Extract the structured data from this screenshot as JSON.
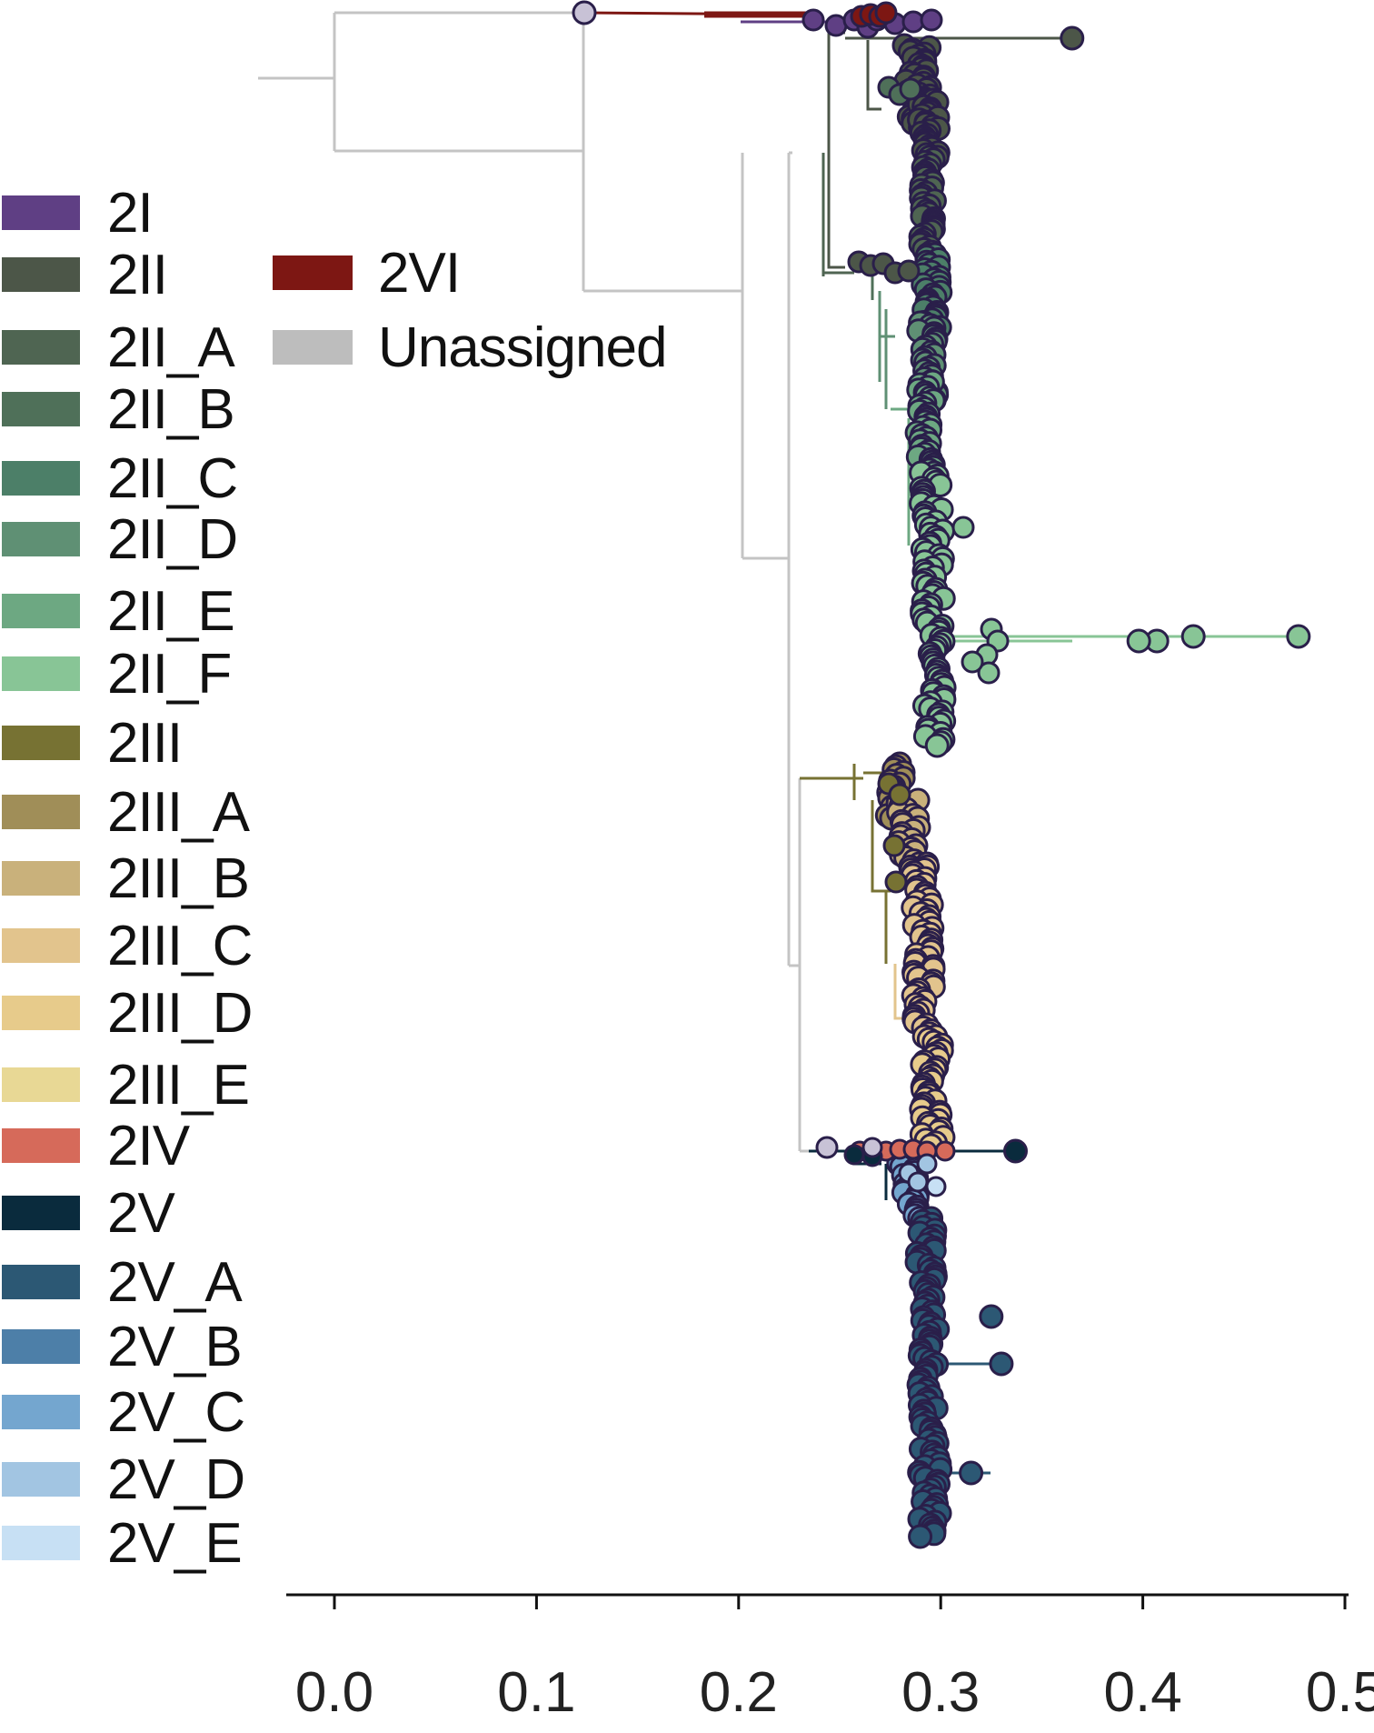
{
  "legend_left": [
    {
      "label": "2I",
      "color": "#5f3f84"
    },
    {
      "label": "2II",
      "color": "#4c5648"
    },
    {
      "label": "2II_A",
      "color": "#4f6552"
    },
    {
      "label": "2II_B",
      "color": "#4f7059"
    },
    {
      "label": "2II_C",
      "color": "#4c7f68"
    },
    {
      "label": "2II_D",
      "color": "#5f9074"
    },
    {
      "label": "2II_E",
      "color": "#6da882"
    },
    {
      "label": "2II_F",
      "color": "#88c596"
    },
    {
      "label": "2III",
      "color": "#777233"
    },
    {
      "label": "2III_A",
      "color": "#a08e58"
    },
    {
      "label": "2III_B",
      "color": "#c9b17b"
    },
    {
      "label": "2III_C",
      "color": "#e2c48d"
    },
    {
      "label": "2III_D",
      "color": "#e7cb8b"
    },
    {
      "label": "2III_E",
      "color": "#e8d895"
    },
    {
      "label": "2IV",
      "color": "#d66a5a"
    },
    {
      "label": "2V",
      "color": "#0a2b3d"
    },
    {
      "label": "2V_A",
      "color": "#2c5874"
    },
    {
      "label": "2V_B",
      "color": "#4d7fa8"
    },
    {
      "label": "2V_C",
      "color": "#74a6cf"
    },
    {
      "label": "2V_D",
      "color": "#a2c5e2"
    },
    {
      "label": "2V_E",
      "color": "#c7e0f4"
    }
  ],
  "legend_right": [
    {
      "label": "2VI",
      "color": "#7d1713"
    },
    {
      "label": "Unassigned",
      "color": "#bdbdbd"
    }
  ],
  "chart_data": {
    "type": "phylogenetic-tree",
    "x_axis": {
      "ticks": [
        "0.0",
        "0.1",
        "0.2",
        "0.3",
        "0.4",
        "0.5"
      ],
      "range": [
        -0.025,
        0.5
      ]
    },
    "clades": [
      {
        "name": "2VI",
        "color": "#7d1713",
        "x_min": 0.255,
        "x_max": 0.275
      },
      {
        "name": "2I",
        "color": "#5f3f84",
        "x_min": 0.235,
        "x_max": 0.295
      },
      {
        "name": "2II",
        "color": "#4c5648",
        "x_min": 0.27,
        "x_max": 0.365
      },
      {
        "name": "2II_F",
        "color": "#88c596",
        "x_min": 0.275,
        "x_max": 0.477
      },
      {
        "name": "2III",
        "color": "#777233",
        "x_min": 0.27,
        "x_max": 0.31
      },
      {
        "name": "2IV",
        "color": "#d66a5a",
        "x_min": 0.26,
        "x_max": 0.305
      },
      {
        "name": "2V_A",
        "color": "#2c5874",
        "x_min": 0.275,
        "x_max": 0.336
      }
    ],
    "outlier_tips": [
      {
        "clade": "2II",
        "x": 0.365
      },
      {
        "clade": "2II_F",
        "x": 0.477
      },
      {
        "clade": "2II_F",
        "x": 0.425
      },
      {
        "clade": "2II_F",
        "x": 0.407
      },
      {
        "clade": "2II_F",
        "x": 0.398
      },
      {
        "clade": "2V",
        "x": 0.337
      },
      {
        "clade": "2V_A",
        "x": 0.33
      },
      {
        "clade": "2V_A",
        "x": 0.325
      },
      {
        "clade": "2V_A",
        "x": 0.315
      }
    ]
  }
}
